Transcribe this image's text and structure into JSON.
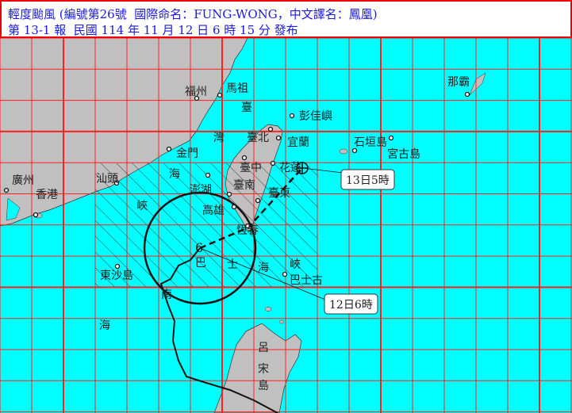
{
  "header": {
    "title": "輕度颱風 (編號第26號  國際命名：FUNG-WONG，中文譯名：鳳凰)",
    "issue": "第 13-1 報  民國 114 年 11 月 12 日 6 時 15 分 發布"
  },
  "colors": {
    "sea": "#00ffff",
    "land": "#c0c0c0",
    "grid": "#ff2020",
    "title_text": "#1a1ae0"
  },
  "places": {
    "fuzhou": "福州",
    "mazu": "馬祖",
    "taiwan_strait_1": "臺",
    "taiwan_strait_2": "灣",
    "taiwan_strait_3": "海",
    "taiwan_strait_4": "峽",
    "pengjia": "彭佳嶼",
    "jinmen": "金門",
    "taipei": "臺北",
    "yilan": "宜蘭",
    "ishigaki": "石垣島",
    "miyako": "宮古島",
    "naha": "那霸",
    "taichung": "臺中",
    "hualien": "花蓮",
    "guangzhou": "廣州",
    "hongkong": "香港",
    "shantou": "汕頭",
    "penghu": "澎湖",
    "tainan": "臺南",
    "taitung": "臺東",
    "kaohsiung": "高雄",
    "hengchun": "恆春",
    "dongsha": "東沙島",
    "bashi_1": "巴",
    "bashi_2": "士",
    "bashi_3": "海",
    "bashi_4": "峽",
    "batanes": "巴士古",
    "scs_1": "南",
    "scs_2": "海",
    "luzon_1": "呂",
    "luzon_2": "宋",
    "luzon_3": "島"
  },
  "track": {
    "current_label": "12日6時",
    "forecast_label": "13日5時"
  }
}
